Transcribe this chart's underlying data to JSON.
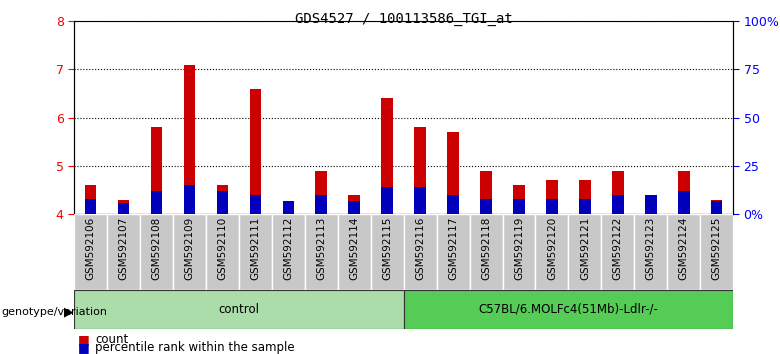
{
  "title": "GDS4527 / 100113586_TGI_at",
  "samples": [
    "GSM592106",
    "GSM592107",
    "GSM592108",
    "GSM592109",
    "GSM592110",
    "GSM592111",
    "GSM592112",
    "GSM592113",
    "GSM592114",
    "GSM592115",
    "GSM592116",
    "GSM592117",
    "GSM592118",
    "GSM592119",
    "GSM592120",
    "GSM592121",
    "GSM592122",
    "GSM592123",
    "GSM592124",
    "GSM592125"
  ],
  "count_values": [
    4.6,
    4.3,
    5.8,
    7.1,
    4.6,
    6.6,
    4.2,
    4.9,
    4.4,
    6.4,
    5.8,
    5.7,
    4.9,
    4.6,
    4.7,
    4.7,
    4.9,
    4.3,
    4.9,
    4.3
  ],
  "percentile_values_raw": [
    8,
    6,
    12,
    15,
    12,
    10,
    7,
    10,
    7,
    14,
    14,
    10,
    8,
    8,
    8,
    8,
    10,
    10,
    12,
    7
  ],
  "groups": [
    {
      "label": "control",
      "start": 0,
      "end": 10,
      "color": "#aaddaa"
    },
    {
      "label": "C57BL/6.MOLFc4(51Mb)-Ldlr-/-",
      "start": 10,
      "end": 20,
      "color": "#55cc55"
    }
  ],
  "ylim_left": [
    4.0,
    8.0
  ],
  "ylim_right": [
    0,
    100
  ],
  "yticks_left": [
    4,
    5,
    6,
    7,
    8
  ],
  "yticks_right": [
    0,
    25,
    50,
    75,
    100
  ],
  "ytick_labels_right": [
    "0%",
    "25",
    "50",
    "75",
    "100%"
  ],
  "bar_color_red": "#CC0000",
  "bar_color_blue": "#0000BB",
  "bar_width": 0.35,
  "tick_bg_color": "#c8c8c8",
  "group_label": "genotype/variation"
}
